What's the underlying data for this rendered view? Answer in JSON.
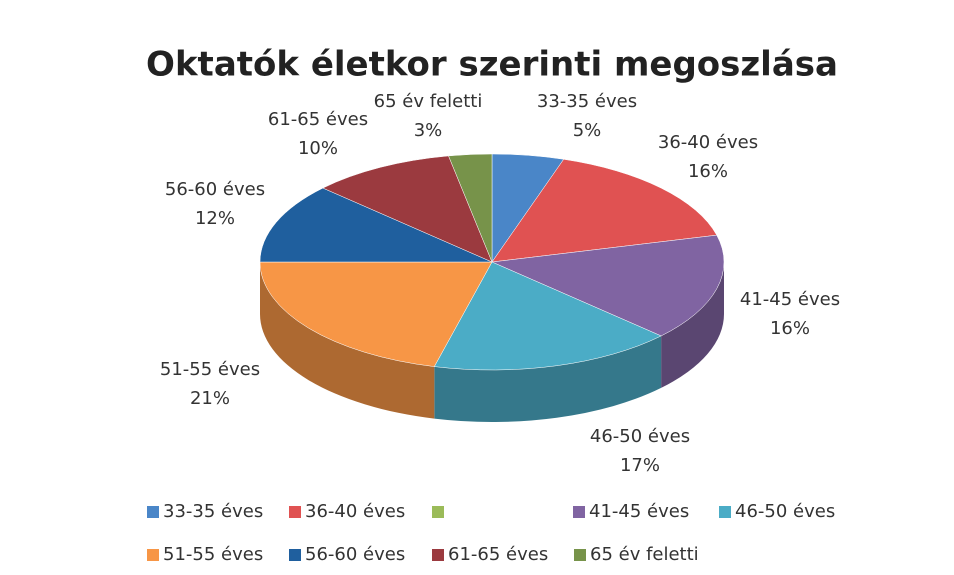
{
  "chart_data": {
    "type": "pie",
    "title": "Oktatók életkor szerinti megoszlása",
    "categories": [
      "33-35 éves",
      "36-40 éves",
      null,
      "41-45 éves",
      "46-50 éves",
      "51-55 éves",
      "56-60 éves",
      "61-65 éves",
      "65 év feletti"
    ],
    "values": [
      5,
      16,
      0,
      16,
      17,
      21,
      12,
      10,
      3
    ],
    "value_labels": [
      "5%",
      "16%",
      null,
      "16%",
      "17%",
      "21%",
      "12%",
      "10%",
      "3%"
    ],
    "colors": [
      "#4a86c8",
      "#e05252",
      "#9bbb59",
      "#8064a2",
      "#4bacc6",
      "#f79646",
      "#1f5f9e",
      "#9b3a3f",
      "#77934a"
    ],
    "legend": "bottom"
  }
}
